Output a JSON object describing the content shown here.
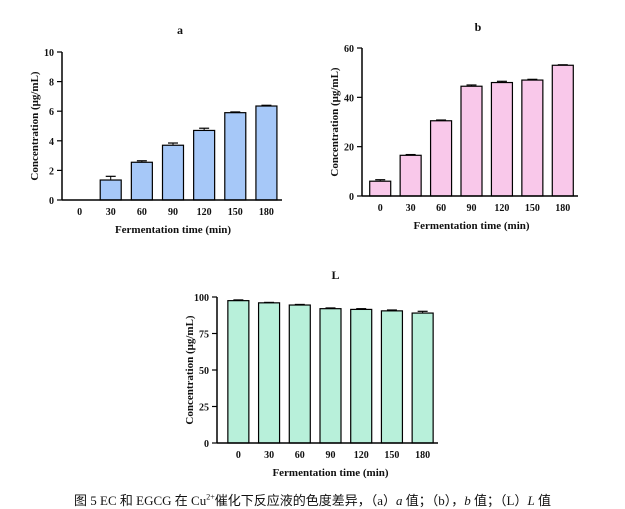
{
  "chart_data": [
    {
      "id": "a",
      "type": "bar",
      "title": "a",
      "xlabel": "Fermentation time (min)",
      "ylabel": "Concentration (μg/mL)",
      "categories": [
        "0",
        "30",
        "60",
        "90",
        "120",
        "150",
        "180"
      ],
      "values": [
        0,
        1.35,
        2.55,
        3.7,
        4.7,
        5.9,
        6.35
      ],
      "errors": [
        0,
        0.25,
        0.1,
        0.15,
        0.15,
        0.05,
        0.05
      ],
      "yticks": [
        0,
        2,
        4,
        6,
        8,
        10
      ],
      "ylim": [
        0,
        10
      ],
      "color": "#a6c8f8"
    },
    {
      "id": "b",
      "type": "bar",
      "title": "b",
      "xlabel": "Fermentation time (min)",
      "ylabel": "Concentration (μg/mL)",
      "categories": [
        "0",
        "30",
        "60",
        "90",
        "120",
        "150",
        "180"
      ],
      "values": [
        6,
        16.5,
        30.5,
        44.5,
        46,
        47,
        53
      ],
      "errors": [
        0.6,
        0.3,
        0.3,
        0.5,
        0.5,
        0.3,
        0.2
      ],
      "yticks": [
        0,
        20,
        40,
        60
      ],
      "ylim": [
        0,
        60
      ],
      "color": "#f9c8ea"
    },
    {
      "id": "L",
      "type": "bar",
      "title": "L",
      "xlabel": "Fermentation time (min)",
      "ylabel": "Concentration (μg/mL)",
      "categories": [
        "0",
        "30",
        "60",
        "90",
        "120",
        "150",
        "180"
      ],
      "values": [
        97.5,
        96,
        94.5,
        92,
        91.5,
        90.5,
        89
      ],
      "errors": [
        0.5,
        0.3,
        0.4,
        0.5,
        0.5,
        0.6,
        1.2
      ],
      "yticks": [
        0,
        25,
        50,
        75,
        100
      ],
      "ylim": [
        0,
        100
      ],
      "color": "#b8f0da"
    }
  ],
  "caption": {
    "prefix": "图 5 EC 和 EGCG 在 Cu",
    "superscript": "2+",
    "middle": "催化下反应液的色度差异，（a）",
    "a_italic": "a",
    "a_suffix": " 值；（b），",
    "b_italic": "b",
    "b_suffix": " 值；（L）",
    "l_italic": "L",
    "l_suffix": " 值"
  }
}
